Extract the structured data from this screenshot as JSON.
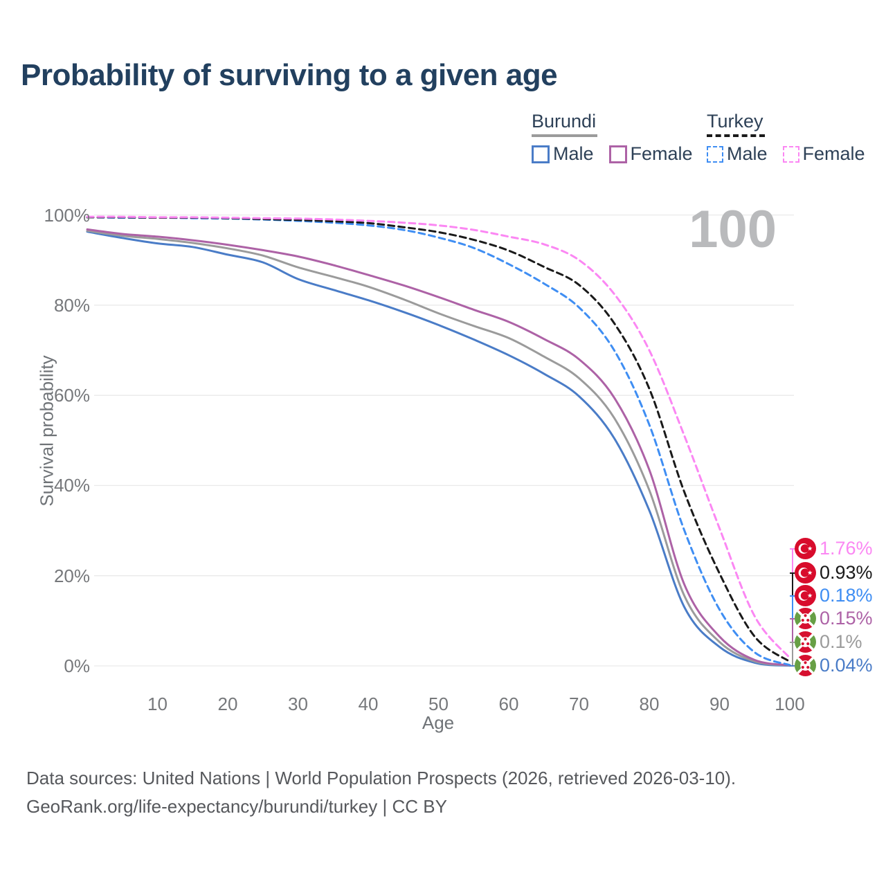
{
  "title": "Probability of surviving to a given age",
  "watermark": "100",
  "legend": {
    "groups": [
      {
        "label": "Burundi",
        "line_style": "solid",
        "line_color": "#9b9b9b",
        "items": [
          {
            "label": "Male",
            "color": "#4a7cc7",
            "dash": false
          },
          {
            "label": "Female",
            "color": "#ad62a6",
            "dash": false
          }
        ]
      },
      {
        "label": "Turkey",
        "line_style": "dashed",
        "line_color": "#1a1a1a",
        "items": [
          {
            "label": "Male",
            "color": "#3f8ef3",
            "dash": true
          },
          {
            "label": "Female",
            "color": "#fb87f3",
            "dash": true
          }
        ]
      }
    ]
  },
  "chart_data": {
    "type": "line",
    "title": "Probability of surviving to a given age",
    "xlabel": "Age",
    "ylabel": "Survival probability",
    "xlim": [
      0,
      100
    ],
    "ylim": [
      0,
      100
    ],
    "x_ticks": [
      10,
      20,
      30,
      40,
      50,
      60,
      70,
      80,
      90,
      100
    ],
    "y_ticks": [
      "0%",
      "20%",
      "40%",
      "60%",
      "80%",
      "100%"
    ],
    "y_tick_values": [
      0,
      20,
      40,
      60,
      80,
      100
    ],
    "grid": "horizontal",
    "legend_position": "top-right",
    "x": [
      0,
      5,
      10,
      15,
      20,
      25,
      30,
      35,
      40,
      45,
      50,
      55,
      60,
      65,
      70,
      75,
      80,
      85,
      90,
      95,
      100
    ],
    "series": [
      {
        "name": "Turkey Female",
        "country": "Turkey",
        "sex": "Female",
        "color": "#fb87f3",
        "dash": true,
        "end_label": "1.76%",
        "values": [
          99.6,
          99.6,
          99.5,
          99.5,
          99.4,
          99.3,
          99.2,
          99.0,
          98.7,
          98.3,
          97.7,
          96.7,
          95.2,
          93.5,
          90.0,
          82.5,
          70.0,
          51.0,
          30.5,
          11.0,
          1.76
        ]
      },
      {
        "name": "Turkey Both sexes",
        "country": "Turkey",
        "sex": "Both",
        "color": "#1a1a1a",
        "dash": true,
        "end_label": "0.93%",
        "values": [
          99.5,
          99.5,
          99.4,
          99.4,
          99.3,
          99.1,
          98.9,
          98.6,
          98.2,
          97.3,
          96.2,
          94.5,
          92.1,
          88.5,
          84.5,
          76.0,
          61.5,
          38.5,
          20.5,
          6.5,
          0.93
        ]
      },
      {
        "name": "Turkey Male",
        "country": "Turkey",
        "sex": "Male",
        "color": "#3f8ef3",
        "dash": true,
        "end_label": "0.18%",
        "values": [
          99.5,
          99.4,
          99.4,
          99.3,
          99.2,
          99.0,
          98.7,
          98.3,
          97.7,
          96.7,
          95.0,
          92.7,
          89.1,
          84.8,
          79.5,
          70.0,
          53.5,
          30.0,
          12.5,
          3.0,
          0.18
        ]
      },
      {
        "name": "Burundi Female",
        "country": "Burundi",
        "sex": "Female",
        "color": "#ad62a6",
        "dash": false,
        "end_label": "0.15%",
        "values": [
          96.8,
          95.8,
          95.2,
          94.4,
          93.4,
          92.2,
          90.8,
          88.9,
          86.7,
          84.4,
          81.8,
          79.0,
          76.3,
          72.5,
          68.0,
          59.5,
          43.5,
          18.0,
          6.5,
          1.3,
          0.15
        ]
      },
      {
        "name": "Burundi Both sexes",
        "country": "Burundi",
        "sex": "Both",
        "color": "#9b9b9b",
        "dash": false,
        "end_label": "0.1%",
        "values": [
          96.5,
          95.4,
          94.7,
          93.8,
          92.6,
          91.0,
          88.4,
          86.3,
          84.1,
          81.3,
          78.2,
          75.4,
          72.7,
          68.6,
          63.8,
          55.0,
          39.0,
          15.5,
          5.3,
          1.0,
          0.1
        ]
      },
      {
        "name": "Burundi Male",
        "country": "Burundi",
        "sex": "Male",
        "color": "#4a7cc7",
        "dash": false,
        "end_label": "0.04%",
        "values": [
          96.3,
          94.9,
          93.7,
          92.9,
          91.2,
          89.5,
          85.8,
          83.4,
          81.1,
          78.5,
          75.6,
          72.4,
          68.9,
          64.8,
          59.8,
          50.5,
          34.5,
          13.0,
          4.2,
          0.7,
          0.04
        ]
      }
    ],
    "annotations": {
      "watermark": "100"
    }
  },
  "end_labels": [
    {
      "flag": "turkey",
      "value": "1.76%",
      "color": "#fb87f3"
    },
    {
      "flag": "turkey",
      "value": "0.93%",
      "color": "#1a1a1a"
    },
    {
      "flag": "turkey",
      "value": "0.18%",
      "color": "#3f8ef3"
    },
    {
      "flag": "burundi",
      "value": "0.15%",
      "color": "#ad62a6"
    },
    {
      "flag": "burundi",
      "value": "0.1%",
      "color": "#9b9b9b"
    },
    {
      "flag": "burundi",
      "value": "0.04%",
      "color": "#4a7cc7"
    }
  ],
  "footer": {
    "line1": "Data sources: United Nations | World Population Prospects (2026, retrieved 2026-03-10).",
    "line2": "GeoRank.org/life-expectancy/burundi/turkey | CC BY"
  },
  "colors": {
    "title": "#22405f",
    "tick_text": "#76787b",
    "gridline": "#e9e9e9",
    "watermark": "#b9babc",
    "footer_text": "#56585c",
    "turkey_flag_red": "#d80c2c",
    "burundi_flag_red": "#d6102f",
    "burundi_flag_green": "#679f45"
  }
}
